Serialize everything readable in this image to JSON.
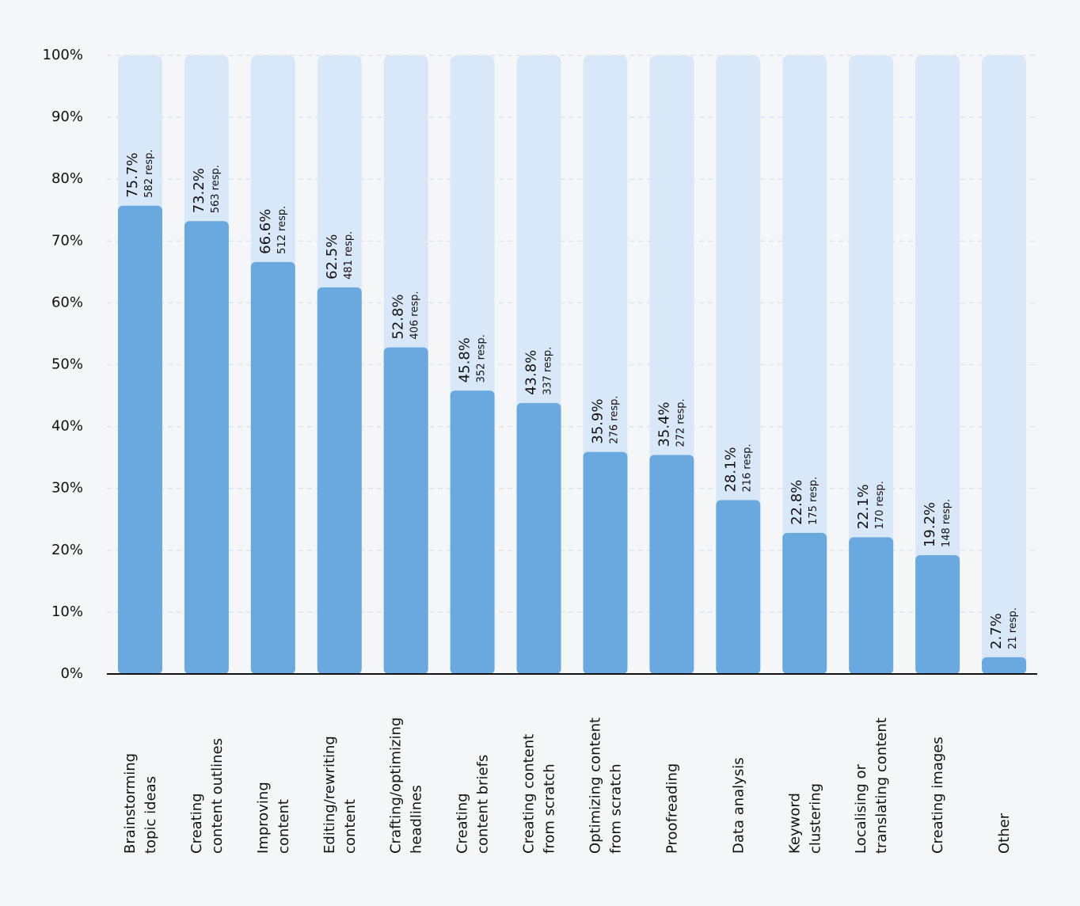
{
  "chart_data": {
    "type": "bar",
    "categories": [
      [
        "Brainstorming",
        "topic ideas"
      ],
      [
        "Creating",
        "content outlines"
      ],
      [
        "Improving",
        "content"
      ],
      [
        "Editing/rewriting",
        "content"
      ],
      [
        "Crafting/optimizing",
        "headlines"
      ],
      [
        "Creating",
        "content briefs"
      ],
      [
        "Creating content",
        "from scratch"
      ],
      [
        "Optimizing content",
        "from scratch"
      ],
      [
        "Proofreading"
      ],
      [
        "Data analysis"
      ],
      [
        "Keyword",
        "clustering"
      ],
      [
        "Localising or",
        "translating content"
      ],
      [
        "Creating images"
      ],
      [
        "Other"
      ]
    ],
    "values": [
      75.7,
      73.2,
      66.6,
      62.5,
      52.8,
      45.8,
      43.8,
      35.9,
      35.4,
      28.1,
      22.8,
      22.1,
      19.2,
      2.7
    ],
    "value_labels": [
      "75.7%",
      "73.2%",
      "66.6%",
      "62.5%",
      "52.8%",
      "45.8%",
      "43.8%",
      "35.9%",
      "35.4%",
      "28.1%",
      "22.8%",
      "22.1%",
      "19.2%",
      "2.7%"
    ],
    "response_labels": [
      "582 resp.",
      "563 resp.",
      "512 resp.",
      "481 resp.",
      "406 resp.",
      "352 resp.",
      "337 resp.",
      "276 resp.",
      "272 resp.",
      "216 resp.",
      "175 resp.",
      "170 resp.",
      "148 resp.",
      "21 resp."
    ],
    "color": "#6aa8e0",
    "track_color": "#d9e8f9",
    "ylim": [
      0,
      100
    ],
    "yticks": [
      {
        "value": 0,
        "label": "0%"
      },
      {
        "value": 10,
        "label": "10%"
      },
      {
        "value": 20,
        "label": "20%"
      },
      {
        "value": 30,
        "label": "30%"
      },
      {
        "value": 40,
        "label": "40%"
      },
      {
        "value": 50,
        "label": "50%"
      },
      {
        "value": 60,
        "label": "60%"
      },
      {
        "value": 70,
        "label": "70%"
      },
      {
        "value": 80,
        "label": "80%"
      },
      {
        "value": 90,
        "label": "90%"
      },
      {
        "value": 100,
        "label": "100%"
      }
    ],
    "grid": true
  }
}
